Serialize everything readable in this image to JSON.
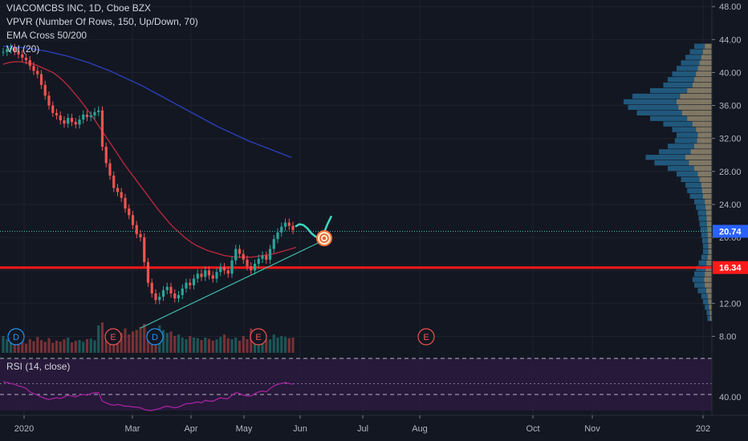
{
  "legend": {
    "symbol_line": "VIACOMCBS INC, 1D, Cboe BZX",
    "vpvr": "VPVR (Number Of Rows, 150, Up/Down, 70)",
    "ema": "EMA Cross 50/200",
    "vol": "Vol (20)"
  },
  "rsi_legend": "RSI (14, close)",
  "chart_data": {
    "type": "candlestick",
    "price_axis_ticks": [
      "48.00",
      "44.00",
      "40.00",
      "36.00",
      "32.00",
      "28.00",
      "24.00",
      "20.00",
      "16.34",
      "12.00",
      "8.00"
    ],
    "price_axis_range": [
      6.0,
      48.8
    ],
    "rsi_axis_ticks": [
      "40.00"
    ],
    "time_axis_labels": [
      "2020",
      "Mar",
      "Apr",
      "May",
      "Jun",
      "Jul",
      "Aug",
      "Oct",
      "Nov",
      "202"
    ],
    "last_price": "20.74",
    "horizontal_level": "16.34",
    "event_markers": [
      "D",
      "E",
      "D",
      "E",
      "E"
    ],
    "close_series": [
      42.5,
      42.8,
      43.0,
      42.6,
      42.2,
      41.8,
      41.5,
      40.8,
      40.2,
      39.8,
      38.5,
      37.2,
      36.0,
      35.1,
      34.8,
      34.2,
      33.8,
      34.5,
      34.0,
      33.7,
      34.3,
      34.9,
      34.6,
      34.8,
      35.2,
      35.4,
      31.0,
      29.0,
      27.5,
      26.0,
      25.5,
      24.8,
      23.5,
      22.7,
      21.5,
      20.4,
      20.0,
      17.0,
      14.5,
      13.2,
      12.4,
      12.8,
      13.6,
      14.0,
      13.2,
      12.6,
      13.0,
      13.8,
      14.5,
      14.2,
      15.0,
      15.6,
      15.2,
      16.0,
      15.4,
      15.0,
      15.8,
      16.4,
      16.0,
      15.6,
      17.2,
      18.6,
      18.0,
      17.3,
      16.5,
      16.0,
      16.8,
      17.4,
      17.8,
      17.3,
      18.6,
      19.8,
      20.6,
      21.3,
      21.8,
      21.4,
      20.9
    ],
    "projection_path": [
      21.3,
      21.6,
      21.5,
      21.1,
      20.5,
      20.1,
      19.9,
      20.4,
      21.6,
      22.6
    ],
    "ema50": [
      41.0,
      41.2,
      41.3,
      41.3,
      41.2,
      41.1,
      40.9,
      40.6,
      40.3,
      40.0,
      39.5,
      38.9,
      38.2,
      37.4,
      36.6,
      35.7,
      34.8,
      33.8,
      32.8,
      31.8,
      30.8,
      29.8,
      28.8,
      27.9,
      27.0,
      26.1,
      25.2,
      24.3,
      23.4,
      22.6,
      21.8,
      21.1,
      20.5,
      19.9,
      19.4,
      19.0,
      18.7,
      18.4,
      18.2,
      18.0,
      17.8,
      17.7,
      17.6,
      17.6,
      17.6,
      17.6,
      17.7,
      17.8,
      17.9,
      18.0,
      18.2,
      18.4,
      18.6,
      18.8
    ],
    "ema200": [
      43.2,
      43.1,
      43.0,
      42.8,
      42.6,
      42.3,
      42.0,
      41.6,
      41.2,
      40.7,
      40.2,
      39.6,
      39.0,
      38.4,
      37.7,
      37.0,
      36.3,
      35.6,
      34.9,
      34.2,
      33.5,
      32.9,
      32.3,
      31.7,
      31.2,
      30.7,
      30.2,
      29.7
    ],
    "trendline": [
      [
        0,
        9.0
      ],
      [
        1,
        19.4
      ]
    ],
    "volume": [
      0.55,
      0.45,
      0.6,
      0.35,
      0.4,
      0.5,
      0.3,
      0.45,
      0.38,
      0.52,
      0.42,
      0.36,
      0.48,
      0.33,
      0.4,
      0.37,
      0.44,
      0.5,
      0.34,
      0.39,
      0.42,
      0.36,
      0.45,
      0.47,
      0.41,
      0.9,
      1.0,
      0.6,
      0.5,
      0.55,
      0.7,
      0.65,
      0.8,
      0.6,
      0.7,
      0.75,
      0.85,
      0.95,
      0.7,
      0.6,
      0.8,
      0.9,
      0.75,
      0.65,
      0.7,
      0.55,
      0.6,
      0.5,
      0.45,
      0.55,
      0.5,
      0.48,
      0.42,
      0.5,
      0.46,
      0.4,
      0.44,
      0.52,
      0.6,
      0.48,
      0.45,
      0.5,
      0.4,
      0.55,
      0.45,
      0.8,
      0.5,
      0.42,
      0.48,
      0.45,
      0.44,
      0.6,
      0.5,
      0.55,
      0.52,
      0.48,
      0.5
    ],
    "rsi": [
      58,
      57,
      56,
      55,
      53,
      52,
      50,
      46,
      44,
      42,
      40,
      38,
      37,
      38,
      39,
      38,
      40,
      42,
      41,
      40,
      42,
      43,
      42,
      44,
      45,
      45,
      35,
      33,
      31,
      30,
      31,
      30,
      29,
      29,
      28,
      28,
      27,
      25,
      24,
      24,
      25,
      26,
      28,
      29,
      28,
      27,
      28,
      30,
      32,
      32,
      33,
      34,
      33,
      36,
      35,
      35,
      37,
      39,
      38,
      38,
      42,
      45,
      44,
      42,
      41,
      41,
      44,
      46,
      47,
      46,
      50,
      53,
      55,
      56,
      57,
      56,
      55
    ],
    "vpvr_profile": [
      0.2,
      0.25,
      0.3,
      0.35,
      0.4,
      0.45,
      0.5,
      0.55,
      0.7,
      0.9,
      1.0,
      0.95,
      0.85,
      0.7,
      0.55,
      0.45,
      0.4,
      0.42,
      0.5,
      0.6,
      0.75,
      0.65,
      0.5,
      0.4,
      0.35,
      0.3,
      0.28,
      0.25,
      0.2,
      0.18,
      0.16,
      0.15,
      0.14,
      0.13,
      0.12,
      0.11,
      0.1,
      0.1,
      0.12,
      0.15,
      0.18,
      0.2,
      0.22,
      0.2,
      0.16,
      0.12,
      0.1,
      0.08,
      0.06,
      0.05
    ]
  },
  "colors": {
    "background": "#131722",
    "grid": "#1e222d",
    "up": "#26a69a",
    "down": "#ef5350",
    "ema50": "#b2283d",
    "ema200": "#2a3fb6",
    "hline": "#ff1a1a",
    "last_price": "#2962ff",
    "projection": "#3fd7c1",
    "rsi": "#a5239e",
    "rsi_band": "#2a1a3d",
    "trendline": "#3fb8a8"
  }
}
